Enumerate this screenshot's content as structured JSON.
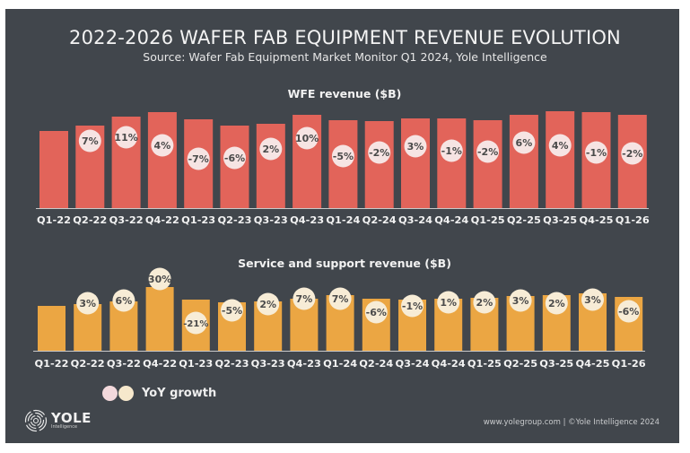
{
  "title": "2022-2026 WAFER FAB EQUIPMENT REVENUE EVOLUTION",
  "subtitle": "Source: Wafer Fab Equipment Market Monitor Q1 2024, Yole Intelligence",
  "colors": {
    "background": "#41464c",
    "wfe_bar": "#e2645a",
    "service_bar": "#eba643",
    "wfe_bubble": "#f6e4e3",
    "service_bubble": "#f7ecd6",
    "bubble_text": "#4a4a4a",
    "axis_line": "#c9c9c9",
    "text": "#f2f2f2"
  },
  "legend": {
    "label": "YoY growth",
    "dots": [
      "#f3d9dc",
      "#f6e8cc"
    ]
  },
  "logo": {
    "name": "YOLE",
    "sub": "Intelligence",
    "icon": "yole-logo-icon"
  },
  "footer": "www.yolegroup.com | ©Yole Intelligence 2024",
  "chart_data": [
    {
      "type": "bar",
      "title": "WFE revenue ($B)",
      "xlabel": "",
      "ylabel": "",
      "note": "No y-axis shown; values are relative bar heights (index units)",
      "categories": [
        "Q1-22",
        "Q2-22",
        "Q3-22",
        "Q4-22",
        "Q1-23",
        "Q2-23",
        "Q3-23",
        "Q4-23",
        "Q1-24",
        "Q2-24",
        "Q3-24",
        "Q4-24",
        "Q1-25",
        "Q2-25",
        "Q3-25",
        "Q4-25",
        "Q1-26"
      ],
      "values": [
        86,
        92,
        102,
        107,
        99,
        92,
        94,
        104,
        98,
        97,
        100,
        100,
        98,
        104,
        108,
        107,
        104
      ],
      "yoy_labels": [
        "",
        "7%",
        "11%",
        "4%",
        "-7%",
        "-6%",
        "2%",
        "10%",
        "-5%",
        "-2%",
        "3%",
        "-1%",
        "-2%",
        "6%",
        "4%",
        "-1%",
        "-2%"
      ],
      "ylim": [
        0,
        110
      ],
      "grid": false,
      "color": "#e2645a"
    },
    {
      "type": "bar",
      "title": "Service and support revenue ($B)",
      "xlabel": "",
      "ylabel": "",
      "note": "No y-axis shown; values are relative bar heights (index units)",
      "categories": [
        "Q1-22",
        "Q2-22",
        "Q3-22",
        "Q4-22",
        "Q1-23",
        "Q2-23",
        "Q3-23",
        "Q4-23",
        "Q1-24",
        "Q2-24",
        "Q3-24",
        "Q4-24",
        "Q1-25",
        "Q2-25",
        "Q3-25",
        "Q4-25",
        "Q1-26"
      ],
      "values": [
        50,
        52,
        55,
        71,
        57,
        54,
        55,
        58,
        62,
        58,
        57,
        58,
        59,
        61,
        62,
        64,
        60
      ],
      "yoy_labels": [
        "",
        "3%",
        "6%",
        "30%",
        "-21%",
        "-5%",
        "2%",
        "7%",
        "7%",
        "-6%",
        "-1%",
        "1%",
        "2%",
        "3%",
        "2%",
        "3%",
        "-6%"
      ],
      "ylim": [
        0,
        110
      ],
      "grid": false,
      "color": "#eba643"
    }
  ]
}
